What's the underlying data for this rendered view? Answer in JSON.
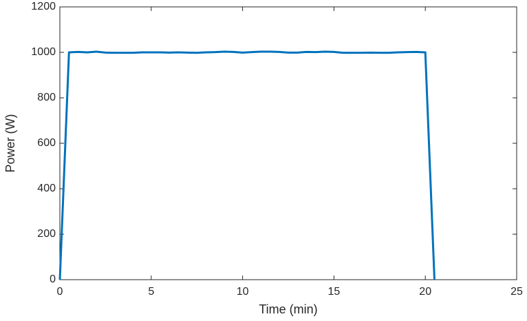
{
  "chart_data": {
    "type": "line",
    "x_label": "Time (min)",
    "y_label": "Power (W)",
    "x": [
      0,
      0.5,
      1,
      1.5,
      2,
      2.5,
      3,
      3.5,
      4,
      4.5,
      5,
      5.5,
      6,
      6.5,
      7,
      7.5,
      8,
      8.5,
      9,
      9.5,
      10,
      10.5,
      11,
      11.5,
      12,
      12.5,
      13,
      13.5,
      14,
      14.5,
      15,
      15.5,
      16,
      16.5,
      17,
      17.5,
      18,
      18.5,
      19,
      19.5,
      20,
      20.5
    ],
    "series": [
      {
        "name": "Power",
        "color": "#0072bd",
        "values": [
          0,
          1000,
          1002,
          1000,
          1003,
          999,
          998,
          998,
          998,
          1000,
          1000,
          1000,
          999,
          1000,
          999,
          998,
          1000,
          1001,
          1003,
          1002,
          999,
          1001,
          1003,
          1003,
          1002,
          999,
          999,
          1002,
          1001,
          1003,
          1002,
          998,
          998,
          998,
          999,
          998,
          998,
          1000,
          1001,
          1002,
          1000,
          0
        ]
      }
    ],
    "xlim": [
      0,
      25
    ],
    "xticks": [
      0,
      5,
      10,
      15,
      20,
      25
    ],
    "ylim": [
      0,
      1200
    ],
    "yticks": [
      0,
      200,
      400,
      600,
      800,
      1000,
      1200
    ],
    "grid": false
  }
}
